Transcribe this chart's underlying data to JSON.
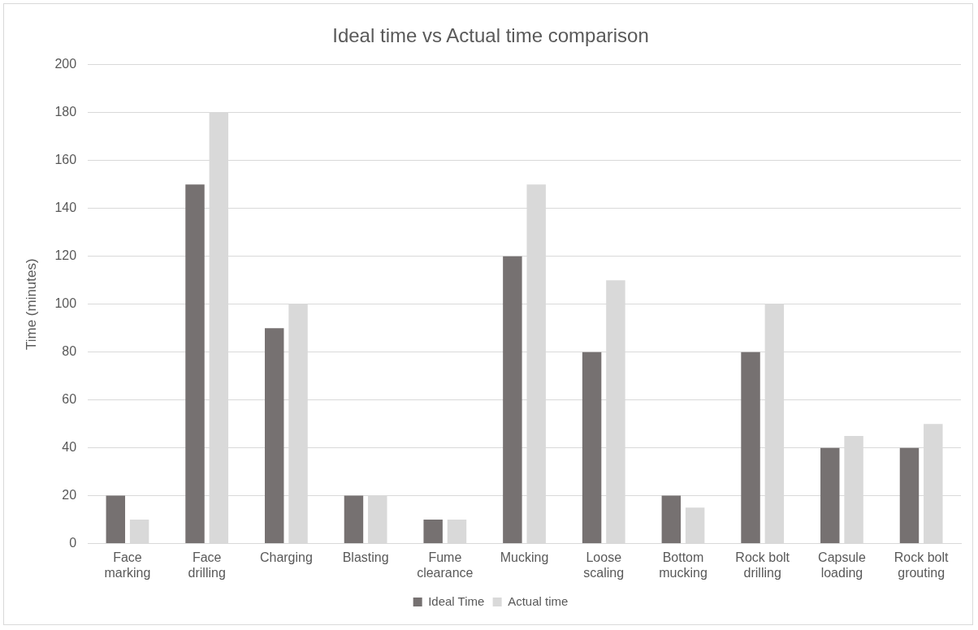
{
  "chart_data": {
    "type": "bar",
    "title": "Ideal time vs Actual time comparison",
    "ylabel": "Time (minutes)",
    "categories": [
      "Face marking",
      "Face drilling",
      "Charging",
      "Blasting",
      "Fume clearance",
      "Mucking",
      "Loose scaling",
      "Bottom mucking",
      "Rock bolt drilling",
      "Capsule loading",
      "Rock bolt grouting"
    ],
    "series": [
      {
        "name": "Ideal Time",
        "color": "#767171",
        "values": [
          20,
          150,
          90,
          20,
          10,
          120,
          80,
          20,
          80,
          40,
          40
        ]
      },
      {
        "name": "Actual time",
        "color": "#d9d9d9",
        "values": [
          10,
          180,
          100,
          20,
          10,
          150,
          110,
          15,
          100,
          45,
          50
        ]
      }
    ],
    "ylim": [
      0,
      200
    ],
    "yticks": [
      0,
      20,
      40,
      60,
      80,
      100,
      120,
      140,
      160,
      180,
      200
    ],
    "grid": "y",
    "legend": "bottom"
  }
}
